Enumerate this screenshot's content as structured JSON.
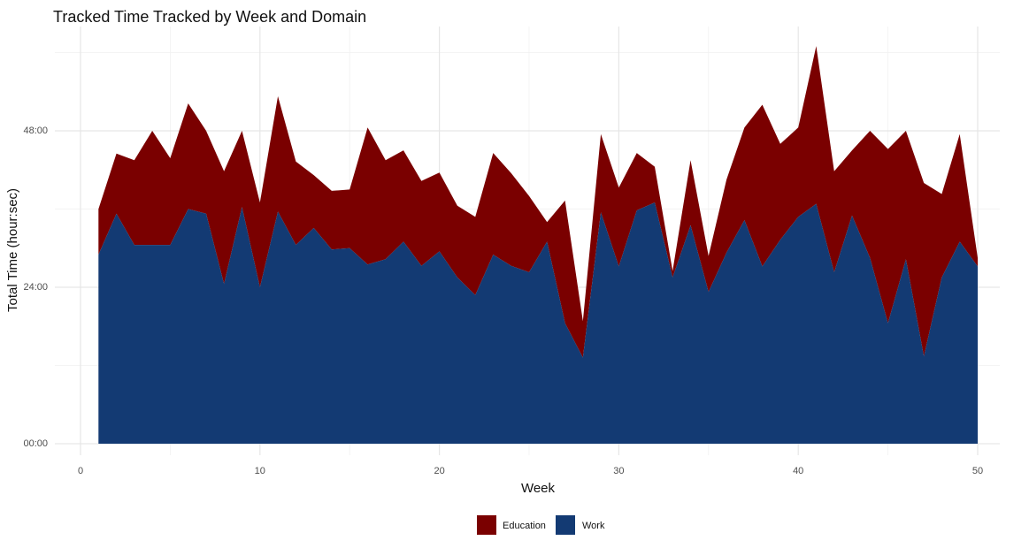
{
  "chart_data": {
    "type": "area",
    "stacked": true,
    "title": "Tracked Time Tracked by Week and Domain",
    "xlabel": "Week",
    "ylabel": "Total Time (hour:sec)",
    "xlim": [
      0,
      50
    ],
    "xticks": [
      0,
      10,
      20,
      30,
      40,
      50
    ],
    "xtick_labels": [
      "0",
      "10",
      "20",
      "30",
      "40",
      "50"
    ],
    "ylim": [
      0,
      60
    ],
    "yticks": [
      0,
      24,
      48
    ],
    "ytick_labels": [
      "00:00",
      "24:00",
      "48:00"
    ],
    "grid": true,
    "legend_position": "bottom",
    "weeks": [
      1,
      2,
      3,
      4,
      5,
      6,
      7,
      8,
      9,
      10,
      11,
      12,
      13,
      14,
      15,
      16,
      17,
      18,
      19,
      20,
      21,
      22,
      23,
      24,
      25,
      26,
      27,
      28,
      29,
      30,
      31,
      32,
      33,
      34,
      35,
      36,
      37,
      38,
      39,
      40,
      41,
      42,
      43,
      44,
      45,
      46,
      47,
      48,
      49,
      50
    ],
    "series": [
      {
        "name": "Work",
        "color": "#133a73",
        "values": [
          29,
          35.3,
          30.5,
          30.5,
          30.5,
          36,
          35.3,
          24.5,
          36.3,
          24,
          35.6,
          30.5,
          33.1,
          29.8,
          30,
          27.5,
          28.3,
          31,
          27.3,
          29.5,
          25.5,
          22.8,
          29,
          27.3,
          26.3,
          31,
          18.5,
          13.2,
          35.5,
          27.2,
          35.8,
          37,
          25.5,
          33.5,
          23.3,
          29.3,
          34.3,
          27.2,
          31.3,
          34.8,
          36.8,
          26.3,
          35,
          28.5,
          18.5,
          28.3,
          13.4,
          25.5,
          31,
          27.2
        ],
        "totals": [
          36,
          44.5,
          43.5,
          48,
          43.8,
          52.2,
          48,
          41.8,
          48,
          37,
          53.3,
          43.3,
          41.2,
          38.8,
          39,
          48.5,
          43.5,
          45,
          40.3,
          41.6,
          36.5,
          34.8,
          44.6,
          41.5,
          38,
          34,
          37.3,
          18.8,
          47.5,
          39.3,
          44.6,
          42.5,
          26.5,
          43.5,
          28.8,
          40.5,
          48.5,
          52,
          46,
          48.5,
          61,
          41.8,
          45,
          48,
          45.2,
          48,
          40,
          38.3,
          47.5,
          28.5
        ]
      },
      {
        "name": "Education",
        "color": "#7a0000"
      }
    ],
    "legend": [
      "Education",
      "Work"
    ]
  },
  "colors": {
    "work": "#133a73",
    "education": "#7a0000",
    "grid_major": "#e6e6e6",
    "grid_minor": "#f1f1f1",
    "text": "#111111",
    "tick_text": "#4d4d4d"
  }
}
